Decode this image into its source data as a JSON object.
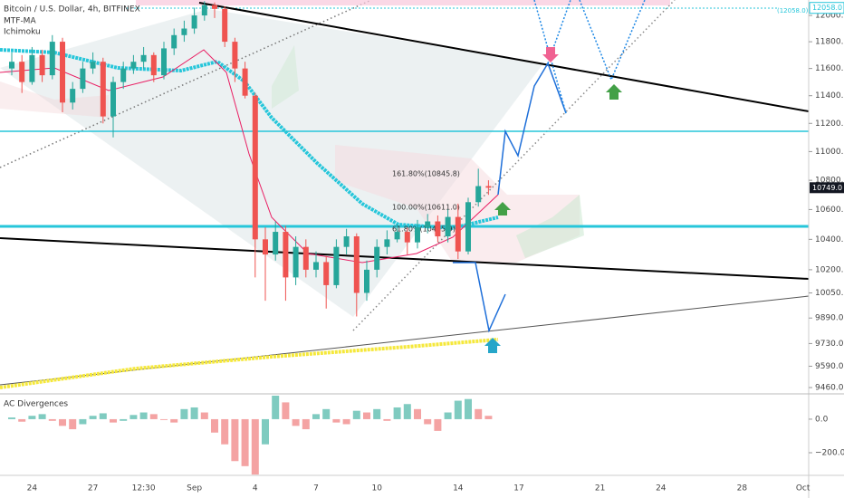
{
  "chart_data": [
    {
      "type": "candlestick",
      "title": "Bitcoin / U.S. Dollar, 4h, BITFINEX",
      "legend": [
        "MTF-MA",
        "Ichimoku"
      ],
      "categories": [
        null,
        null,
        "24",
        null,
        null,
        null,
        null,
        null,
        "27",
        null,
        null,
        null,
        null,
        "12:30",
        null,
        null,
        null,
        null,
        "Sep",
        null,
        null,
        null,
        null,
        null,
        "4",
        null,
        null,
        null,
        null,
        null,
        "7",
        null,
        null,
        null,
        null,
        null,
        "10",
        null,
        null,
        null,
        null,
        null,
        null,
        null,
        "14",
        null,
        null,
        null,
        null,
        null,
        "17",
        null,
        null,
        null,
        null,
        null,
        null,
        null,
        "21",
        null,
        null,
        null,
        null,
        null,
        "24",
        null,
        null,
        null,
        null,
        null,
        null,
        null,
        "28",
        null,
        null,
        null,
        null,
        null,
        "Oct",
        null
      ],
      "open": [
        11600,
        11650,
        11500,
        11700,
        11550,
        11800,
        11350,
        11450,
        11600,
        11650,
        11250,
        11500,
        11600,
        11650,
        11700,
        11550,
        11750,
        11850,
        11900,
        12000,
        12080,
        12050,
        11800,
        11600,
        11400,
        10400,
        10300,
        10450,
        10150,
        10350,
        10200,
        10250,
        10100,
        10350,
        10420,
        10050,
        10200,
        10350,
        10400,
        10450,
        10380,
        10480,
        10520,
        10420,
        10550,
        10320,
        10650,
        10760,
        null,
        null,
        null,
        null,
        null,
        null,
        null,
        null,
        null,
        null,
        null,
        null,
        null,
        null,
        null,
        null,
        null,
        null,
        null,
        null,
        null,
        null,
        null,
        null,
        null,
        null,
        null,
        null,
        null,
        null,
        null,
        null
      ],
      "high": [
        11720,
        11700,
        11760,
        11740,
        11850,
        11830,
        11500,
        11650,
        11720,
        11680,
        11540,
        11650,
        11700,
        11760,
        11720,
        11800,
        11900,
        11960,
        12060,
        12110,
        12100,
        12070,
        11830,
        11650,
        11420,
        10480,
        10520,
        10490,
        10420,
        10400,
        10320,
        10290,
        10400,
        10470,
        10440,
        10260,
        10400,
        10460,
        10500,
        10480,
        10530,
        10570,
        10560,
        10600,
        10640,
        10680,
        10880,
        10800,
        null,
        null,
        null,
        null,
        null,
        null,
        null,
        null,
        null,
        null,
        null,
        null,
        null,
        null,
        null,
        null,
        null,
        null,
        null,
        null,
        null,
        null,
        null,
        null,
        null,
        null,
        null,
        null,
        null,
        null,
        null,
        null
      ],
      "low": [
        11550,
        11420,
        11480,
        11500,
        11520,
        11280,
        11300,
        11420,
        11560,
        11200,
        11100,
        11450,
        11560,
        11600,
        11500,
        11520,
        11700,
        11800,
        11860,
        11960,
        11980,
        11760,
        11500,
        11380,
        10150,
        10000,
        10260,
        10000,
        10100,
        10150,
        10150,
        9950,
        10080,
        10300,
        9900,
        10000,
        10150,
        10300,
        10380,
        10300,
        10340,
        10440,
        10380,
        10380,
        10270,
        10300,
        10620,
        10700,
        null,
        null,
        null,
        null,
        null,
        null,
        null,
        null,
        null,
        null,
        null,
        null,
        null,
        null,
        null,
        null,
        null,
        null,
        null,
        null,
        null,
        null,
        null,
        null,
        null,
        null,
        null,
        null,
        null,
        null,
        null,
        null
      ],
      "close": [
        11650,
        11500,
        11700,
        11550,
        11800,
        11350,
        11450,
        11600,
        11650,
        11250,
        11500,
        11600,
        11650,
        11700,
        11550,
        11750,
        11850,
        11900,
        12000,
        12080,
        12050,
        11800,
        11600,
        11400,
        10400,
        10300,
        10450,
        10150,
        10350,
        10200,
        10250,
        10100,
        10350,
        10420,
        10050,
        10200,
        10350,
        10400,
        10450,
        10380,
        10480,
        10520,
        10420,
        10550,
        10320,
        10650,
        10760,
        10749,
        null,
        null,
        null,
        null,
        null,
        null,
        null,
        null,
        null,
        null,
        null,
        null,
        null,
        null,
        null,
        null,
        null,
        null,
        null,
        null,
        null,
        null,
        null,
        null,
        null,
        null,
        null,
        null,
        null,
        null,
        null,
        null
      ],
      "up_color": "#26a69a",
      "down_color": "#ef5350",
      "log_scale": true,
      "ylim": [
        9422,
        12119
      ],
      "yticks": [
        {
          "value": 12000,
          "label": "12000.0"
        },
        {
          "value": 11800,
          "label": "11800.0"
        },
        {
          "value": 11600,
          "label": "11600.0"
        },
        {
          "value": 11400,
          "label": "11400.0"
        },
        {
          "value": 11200,
          "label": "11200.0"
        },
        {
          "value": 11000,
          "label": "11000.0"
        },
        {
          "value": 10800,
          "label": "10800.0"
        },
        {
          "value": 10600,
          "label": "10600.0"
        },
        {
          "value": 10400,
          "label": "10400.0"
        },
        {
          "value": 10200,
          "label": "10200.0"
        },
        {
          "value": 10050,
          "label": "10050.0"
        },
        {
          "value": 9890,
          "label": "9890.0"
        },
        {
          "value": 9730,
          "label": "9730.0"
        },
        {
          "value": 9590,
          "label": "9590.0"
        },
        {
          "value": 9460,
          "label": "9460.0"
        }
      ],
      "annotations": [
        "161.80%(10845.8)",
        "100.00%(10611.0)",
        "61.80%(10465.9)",
        "(12058.0)"
      ],
      "price_labels": [
        {
          "value": 10749,
          "label": "10749.0"
        },
        {
          "value": 12058,
          "label": "12058.0"
        }
      ]
    },
    {
      "type": "bar",
      "title": "AC Divergences",
      "values": [
        10,
        -15,
        20,
        30,
        -10,
        -40,
        -60,
        -30,
        20,
        35,
        -20,
        -10,
        25,
        40,
        30,
        -5,
        -20,
        60,
        70,
        40,
        -80,
        -150,
        -250,
        -280,
        -330,
        -150,
        140,
        100,
        -40,
        -60,
        30,
        60,
        -20,
        -30,
        50,
        40,
        60,
        -10,
        70,
        90,
        60,
        -30,
        -70,
        40,
        110,
        120,
        60,
        20,
        null,
        null,
        null,
        null,
        null,
        null,
        null,
        null,
        null,
        null,
        null,
        null,
        null,
        null,
        null,
        null,
        null,
        null,
        null,
        null,
        null,
        null,
        null,
        null,
        null,
        null,
        null,
        null,
        null,
        null,
        null,
        null
      ],
      "up_color": "#7fcbc0",
      "down_color": "#f4a3a3",
      "ylim": [
        -335,
        140
      ],
      "yticks": [
        {
          "value": 0,
          "label": "0.0"
        },
        {
          "value": -200,
          "label": "−200.0"
        }
      ]
    }
  ]
}
